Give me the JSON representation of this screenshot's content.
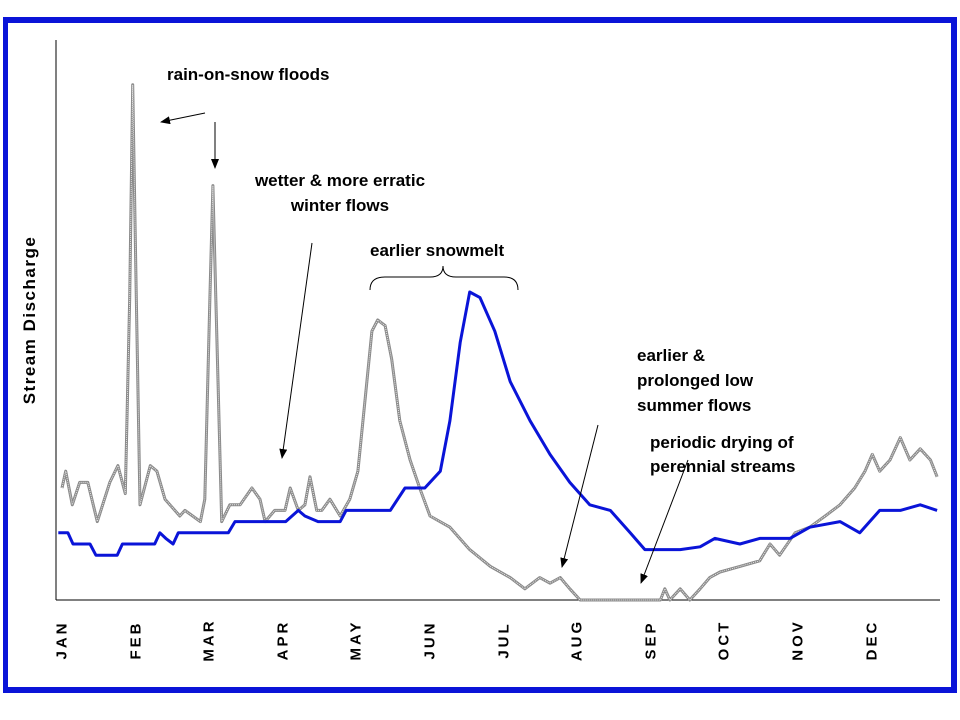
{
  "chart_data": {
    "type": "line",
    "title": "",
    "xlabel": "",
    "ylabel": "Stream Discharge",
    "x_tick_labels": [
      "JAN",
      "FEB",
      "MAR",
      "APR",
      "MAY",
      "JUN",
      "JUL",
      "AUG",
      "SEP",
      "OCT",
      "NOV",
      "DEC"
    ],
    "x_unit": "month (1 = JAN)",
    "y_ticks_shown": false,
    "grid": false,
    "legend": "none",
    "series": [
      {
        "color": "#0a14d8",
        "style": "solid",
        "points": [
          [
            0.95,
            12
          ],
          [
            1.08,
            12
          ],
          [
            1.15,
            10
          ],
          [
            1.38,
            10
          ],
          [
            1.46,
            8
          ],
          [
            1.75,
            8
          ],
          [
            1.82,
            10
          ],
          [
            2.26,
            10
          ],
          [
            2.33,
            12
          ],
          [
            2.41,
            11
          ],
          [
            2.51,
            10
          ],
          [
            2.58,
            12
          ],
          [
            3.26,
            12
          ],
          [
            3.35,
            14
          ],
          [
            4.04,
            14
          ],
          [
            4.21,
            16
          ],
          [
            4.3,
            15
          ],
          [
            4.48,
            14
          ],
          [
            4.78,
            14
          ],
          [
            4.86,
            16
          ],
          [
            5.46,
            16
          ],
          [
            5.66,
            20
          ],
          [
            5.93,
            20
          ],
          [
            6.14,
            23
          ],
          [
            6.27,
            32
          ],
          [
            6.41,
            46
          ],
          [
            6.54,
            55
          ],
          [
            6.68,
            54
          ],
          [
            6.88,
            48
          ],
          [
            7.09,
            39
          ],
          [
            7.36,
            32
          ],
          [
            7.63,
            26
          ],
          [
            7.9,
            21
          ],
          [
            8.17,
            17
          ],
          [
            8.45,
            16
          ],
          [
            8.72,
            12
          ],
          [
            8.92,
            9
          ],
          [
            9.13,
            9
          ],
          [
            9.4,
            9
          ],
          [
            9.67,
            9.5
          ],
          [
            9.87,
            11
          ],
          [
            10.21,
            10
          ],
          [
            10.48,
            11
          ],
          [
            10.89,
            11
          ],
          [
            11.16,
            13
          ],
          [
            11.57,
            14
          ],
          [
            11.84,
            12
          ],
          [
            12.11,
            16
          ],
          [
            12.39,
            16
          ],
          [
            12.66,
            17
          ],
          [
            12.89,
            16
          ]
        ]
      },
      {
        "color": "#8a8a8a",
        "style": "stippled",
        "points": [
          [
            1.0,
            20
          ],
          [
            1.05,
            23
          ],
          [
            1.14,
            17
          ],
          [
            1.24,
            21
          ],
          [
            1.35,
            21
          ],
          [
            1.48,
            14
          ],
          [
            1.65,
            21
          ],
          [
            1.76,
            24
          ],
          [
            1.86,
            19
          ],
          [
            1.92,
            54
          ],
          [
            1.96,
            92
          ],
          [
            2.01,
            54
          ],
          [
            2.06,
            17
          ],
          [
            2.2,
            24
          ],
          [
            2.29,
            23
          ],
          [
            2.4,
            18
          ],
          [
            2.6,
            15
          ],
          [
            2.67,
            16
          ],
          [
            2.88,
            14
          ],
          [
            2.94,
            18
          ],
          [
            3.01,
            54
          ],
          [
            3.05,
            74
          ],
          [
            3.09,
            54
          ],
          [
            3.17,
            14
          ],
          [
            3.28,
            17
          ],
          [
            3.42,
            17
          ],
          [
            3.58,
            20
          ],
          [
            3.69,
            18
          ],
          [
            3.76,
            14
          ],
          [
            3.89,
            16
          ],
          [
            4.03,
            16
          ],
          [
            4.1,
            20
          ],
          [
            4.21,
            16
          ],
          [
            4.3,
            17
          ],
          [
            4.37,
            22
          ],
          [
            4.46,
            16
          ],
          [
            4.53,
            16
          ],
          [
            4.64,
            18
          ],
          [
            4.78,
            15
          ],
          [
            4.91,
            18
          ],
          [
            5.02,
            23
          ],
          [
            5.12,
            36
          ],
          [
            5.21,
            48
          ],
          [
            5.29,
            50
          ],
          [
            5.39,
            49
          ],
          [
            5.48,
            43
          ],
          [
            5.59,
            32
          ],
          [
            5.73,
            25
          ],
          [
            5.86,
            20
          ],
          [
            6.0,
            15
          ],
          [
            6.27,
            13
          ],
          [
            6.54,
            9
          ],
          [
            6.82,
            6
          ],
          [
            7.09,
            4
          ],
          [
            7.29,
            2
          ],
          [
            7.49,
            4
          ],
          [
            7.63,
            3
          ],
          [
            7.77,
            4
          ],
          [
            7.9,
            2
          ],
          [
            8.04,
            0
          ],
          [
            8.31,
            0
          ],
          [
            8.85,
            0
          ],
          [
            9.13,
            0
          ],
          [
            9.19,
            2
          ],
          [
            9.26,
            0
          ],
          [
            9.4,
            2
          ],
          [
            9.53,
            0
          ],
          [
            9.67,
            2
          ],
          [
            9.8,
            4
          ],
          [
            9.94,
            5
          ],
          [
            10.21,
            6
          ],
          [
            10.48,
            7
          ],
          [
            10.62,
            10
          ],
          [
            10.75,
            8
          ],
          [
            10.96,
            12
          ],
          [
            11.16,
            13
          ],
          [
            11.37,
            15
          ],
          [
            11.57,
            17
          ],
          [
            11.77,
            20
          ],
          [
            11.91,
            23
          ],
          [
            12.01,
            26
          ],
          [
            12.11,
            23
          ],
          [
            12.25,
            25
          ],
          [
            12.39,
            29
          ],
          [
            12.52,
            25
          ],
          [
            12.66,
            27
          ],
          [
            12.8,
            25
          ],
          [
            12.89,
            22
          ]
        ]
      }
    ],
    "annotations": {
      "rain_on_snow": "rain-on-snow floods",
      "wetter_line1": "wetter & more erratic",
      "wetter_line2": "winter flows",
      "snowmelt": "earlier snowmelt",
      "low_line1": "earlier &",
      "low_line2": "prolonged low",
      "low_line3": "summer flows",
      "drying_line1": "periodic drying of",
      "drying_line2": "perennial streams"
    }
  }
}
